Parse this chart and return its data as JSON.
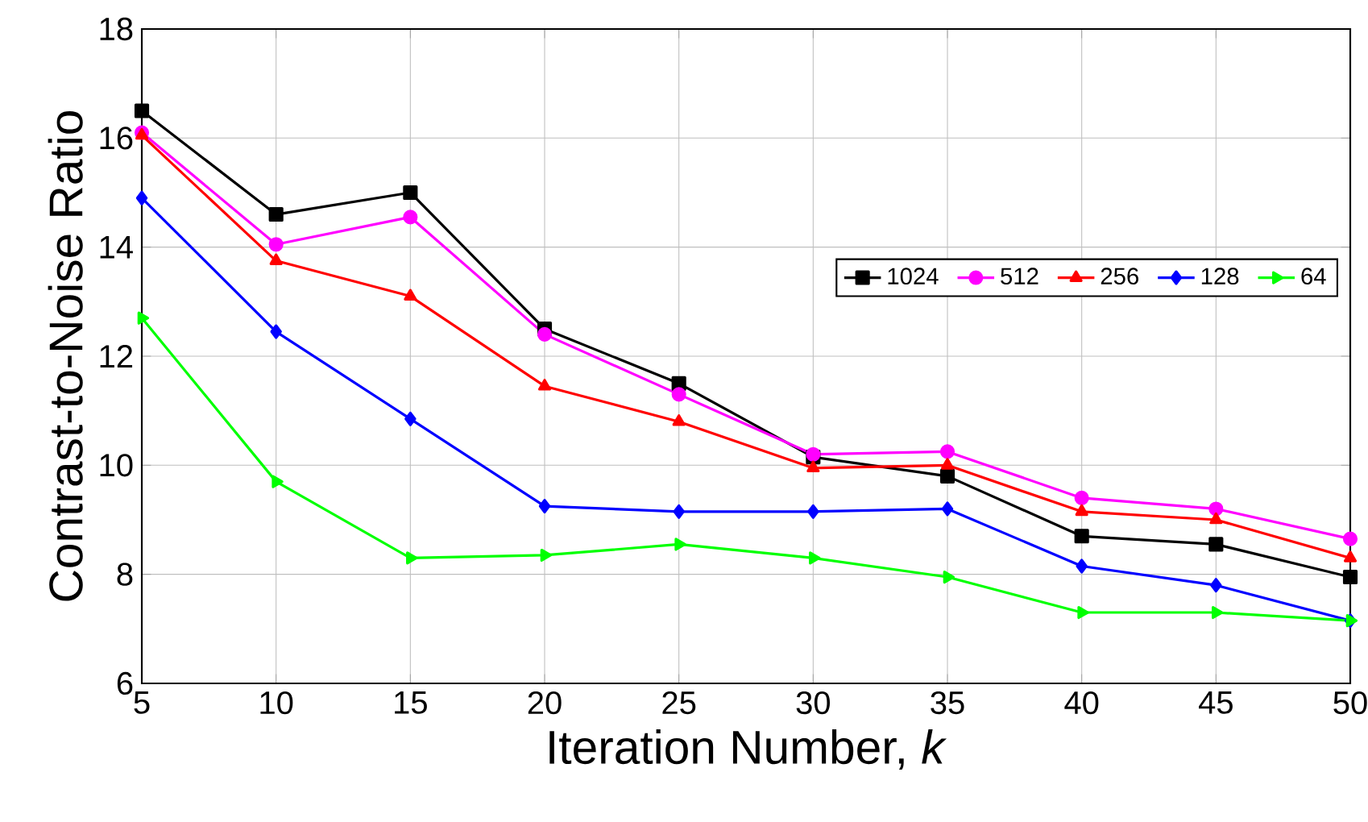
{
  "chart_data": {
    "type": "line",
    "xlabel": "Iteration Number, *k*",
    "ylabel": "Contrast-to-Noise Ratio",
    "x": [
      5,
      10,
      15,
      20,
      25,
      30,
      35,
      40,
      45,
      50
    ],
    "series": [
      {
        "name": "1024",
        "color": "#000000",
        "marker": "square",
        "values": [
          16.5,
          14.6,
          15.0,
          12.5,
          11.5,
          10.15,
          9.8,
          8.7,
          8.55,
          7.95
        ]
      },
      {
        "name": "512",
        "color": "#ff00ff",
        "marker": "circle",
        "values": [
          16.1,
          14.05,
          14.55,
          12.4,
          11.3,
          10.2,
          10.25,
          9.4,
          9.2,
          8.65
        ]
      },
      {
        "name": "256",
        "color": "#ff0000",
        "marker": "triangle",
        "values": [
          16.05,
          13.75,
          13.1,
          11.45,
          10.8,
          9.95,
          10.0,
          9.15,
          9.0,
          8.3
        ]
      },
      {
        "name": "128",
        "color": "#0000ff",
        "marker": "diamond",
        "values": [
          14.9,
          12.45,
          10.85,
          9.25,
          9.15,
          9.15,
          9.2,
          8.15,
          7.8,
          7.15
        ]
      },
      {
        "name": "64",
        "color": "#00ff00",
        "marker": "triangle-right",
        "values": [
          12.7,
          9.7,
          8.3,
          8.35,
          8.55,
          8.3,
          7.95,
          7.3,
          7.3,
          7.15
        ]
      }
    ],
    "xlim": [
      5,
      50
    ],
    "ylim": [
      6,
      18
    ],
    "xticks": [
      5,
      10,
      15,
      20,
      25,
      30,
      35,
      40,
      45,
      50
    ],
    "yticks": [
      6,
      8,
      10,
      12,
      14,
      16,
      18
    ],
    "grid": true,
    "legend": "right",
    "line_style": "solid"
  }
}
